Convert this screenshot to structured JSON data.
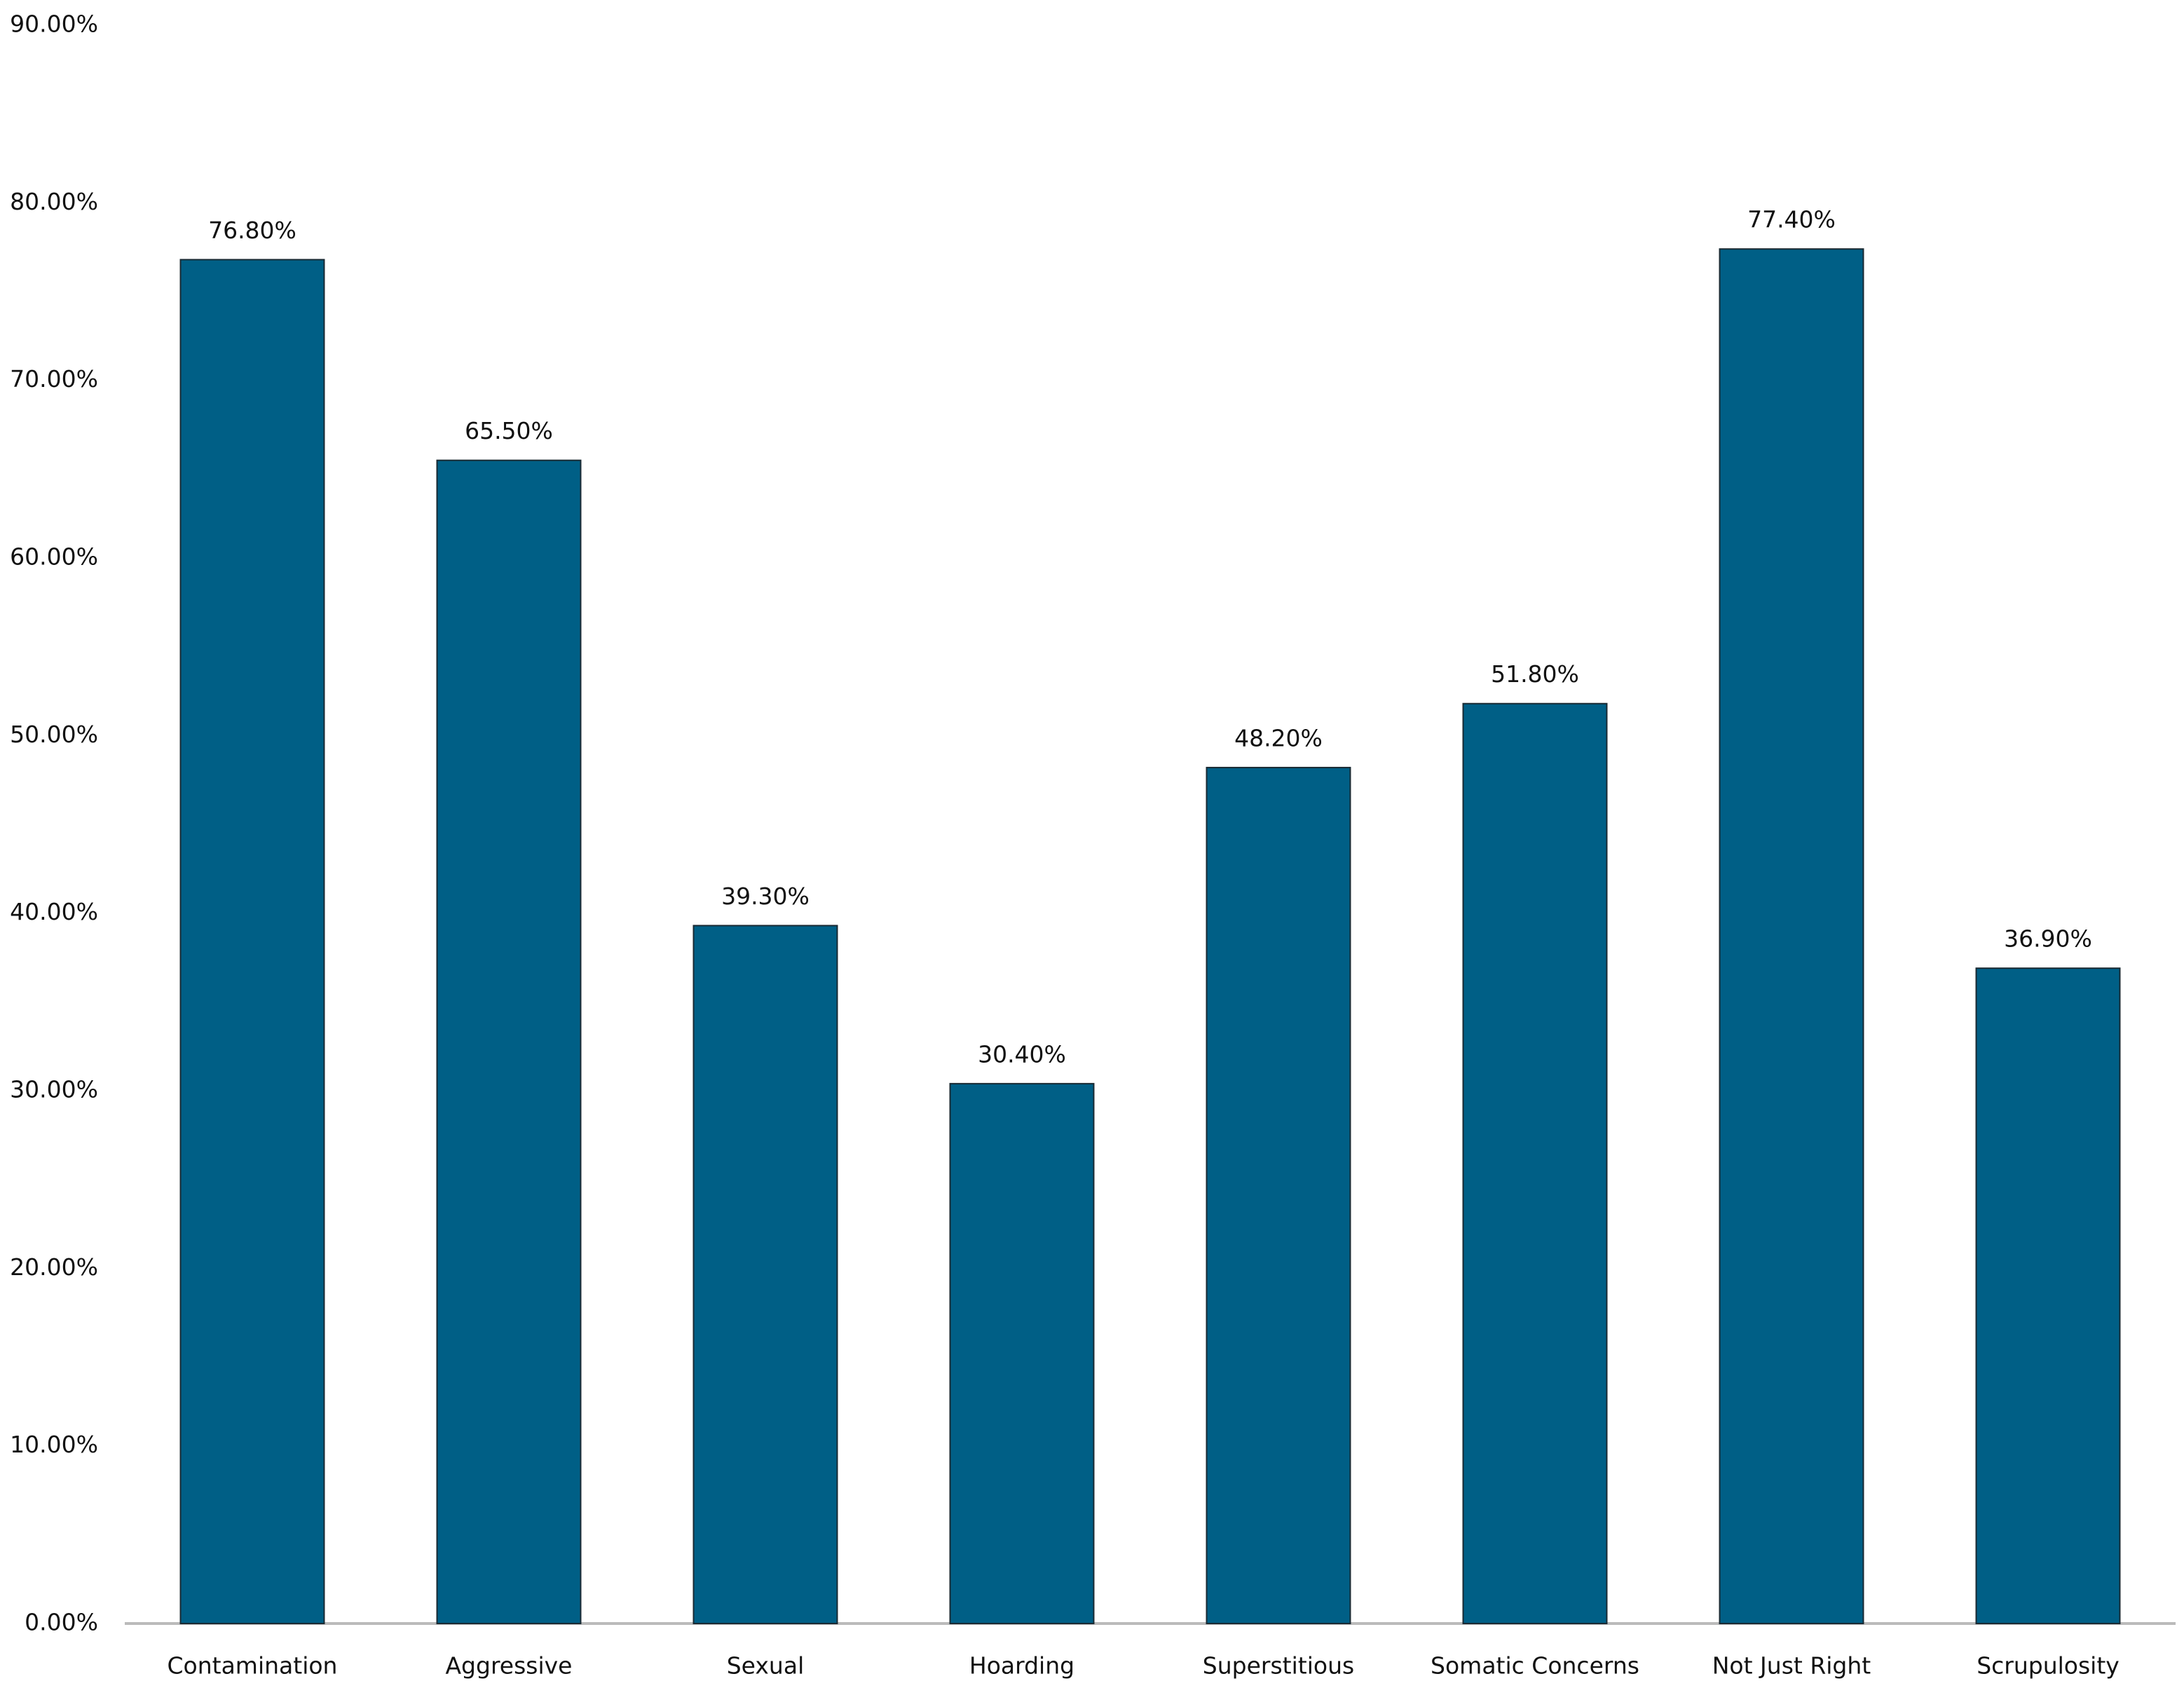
{
  "chart_data": {
    "type": "bar",
    "categories": [
      "Contamination",
      "Aggressive",
      "Sexual",
      "Hoarding",
      "Superstitious",
      "Somatic Concerns",
      "Not Just Right",
      "Scrupulosity"
    ],
    "values": [
      76.8,
      65.5,
      39.3,
      30.4,
      48.2,
      51.8,
      77.4,
      36.9
    ],
    "value_labels": [
      "76.80%",
      "65.50%",
      "39.30%",
      "30.40%",
      "48.20%",
      "51.80%",
      "77.40%",
      "36.90%"
    ],
    "color": "#005f86",
    "ylim": [
      0,
      90
    ],
    "yticks": [
      {
        "value": 0,
        "label": "0.00%"
      },
      {
        "value": 10,
        "label": "10.00%"
      },
      {
        "value": 20,
        "label": "20.00%"
      },
      {
        "value": 30,
        "label": "30.00%"
      },
      {
        "value": 40,
        "label": "40.00%"
      },
      {
        "value": 50,
        "label": "50.00%"
      },
      {
        "value": 60,
        "label": "60.00%"
      },
      {
        "value": 70,
        "label": "70.00%"
      },
      {
        "value": 80,
        "label": "80.00%"
      },
      {
        "value": 90,
        "label": "90.00%"
      }
    ],
    "grid": false
  }
}
